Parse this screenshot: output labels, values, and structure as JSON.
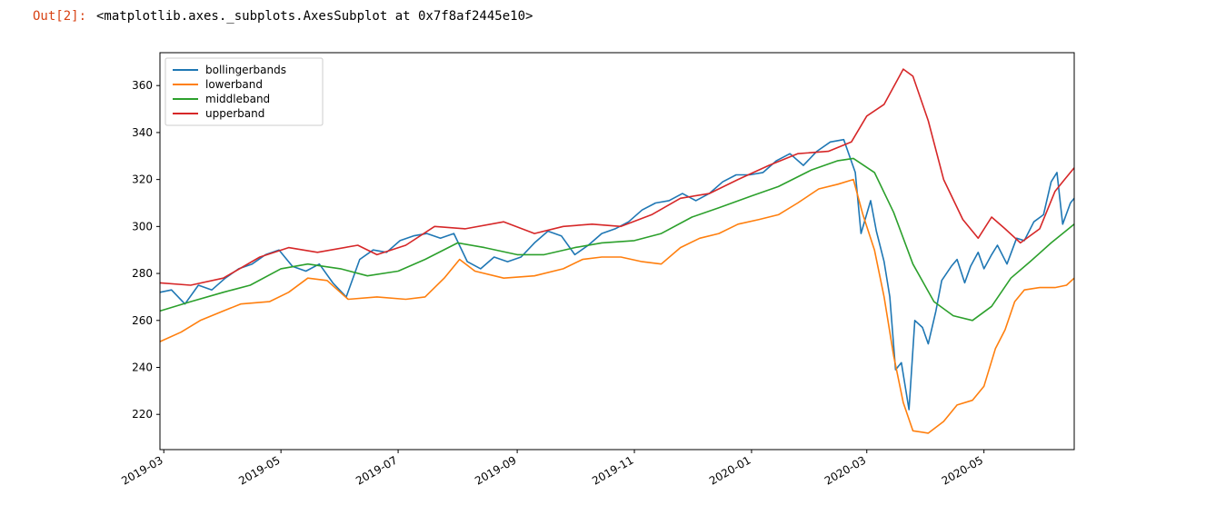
{
  "cell": {
    "prompt": "Out[2]:",
    "text": "<matplotlib.axes._subplots.AxesSubplot at 0x7f8af2445e10>"
  },
  "chart_data": {
    "type": "line",
    "title": "",
    "xlabel": "",
    "ylabel": "",
    "x_axis_type": "date",
    "xlim": [
      "2019-02-27",
      "2020-06-17"
    ],
    "ylim": [
      205,
      374
    ],
    "grid": false,
    "legend_position": "top-left",
    "x_ticks": [
      "2019-03",
      "2019-05",
      "2019-07",
      "2019-09",
      "2019-11",
      "2020-01",
      "2020-03",
      "2020-05"
    ],
    "y_ticks": [
      220,
      240,
      260,
      280,
      300,
      320,
      340,
      360
    ],
    "series": [
      {
        "name": "bollingerbands",
        "color": "#1f77b4",
        "points": [
          [
            "2019-02-27",
            272
          ],
          [
            "2019-03-05",
            273
          ],
          [
            "2019-03-12",
            267
          ],
          [
            "2019-03-19",
            275
          ],
          [
            "2019-03-26",
            273
          ],
          [
            "2019-04-02",
            278
          ],
          [
            "2019-04-09",
            282
          ],
          [
            "2019-04-16",
            284
          ],
          [
            "2019-04-23",
            288
          ],
          [
            "2019-04-30",
            290
          ],
          [
            "2019-05-07",
            283
          ],
          [
            "2019-05-14",
            281
          ],
          [
            "2019-05-21",
            284
          ],
          [
            "2019-05-28",
            276
          ],
          [
            "2019-06-04",
            270
          ],
          [
            "2019-06-11",
            286
          ],
          [
            "2019-06-18",
            290
          ],
          [
            "2019-06-25",
            289
          ],
          [
            "2019-07-02",
            294
          ],
          [
            "2019-07-09",
            296
          ],
          [
            "2019-07-16",
            297
          ],
          [
            "2019-07-23",
            295
          ],
          [
            "2019-07-30",
            297
          ],
          [
            "2019-08-06",
            285
          ],
          [
            "2019-08-13",
            282
          ],
          [
            "2019-08-20",
            287
          ],
          [
            "2019-08-27",
            285
          ],
          [
            "2019-09-03",
            287
          ],
          [
            "2019-09-10",
            293
          ],
          [
            "2019-09-17",
            298
          ],
          [
            "2019-09-24",
            296
          ],
          [
            "2019-10-01",
            288
          ],
          [
            "2019-10-08",
            292
          ],
          [
            "2019-10-15",
            297
          ],
          [
            "2019-10-22",
            299
          ],
          [
            "2019-10-29",
            302
          ],
          [
            "2019-11-05",
            307
          ],
          [
            "2019-11-12",
            310
          ],
          [
            "2019-11-19",
            311
          ],
          [
            "2019-11-26",
            314
          ],
          [
            "2019-12-03",
            311
          ],
          [
            "2019-12-10",
            314
          ],
          [
            "2019-12-17",
            319
          ],
          [
            "2019-12-24",
            322
          ],
          [
            "2019-12-31",
            322
          ],
          [
            "2020-01-07",
            323
          ],
          [
            "2020-01-14",
            328
          ],
          [
            "2020-01-21",
            331
          ],
          [
            "2020-01-28",
            326
          ],
          [
            "2020-02-04",
            332
          ],
          [
            "2020-02-11",
            336
          ],
          [
            "2020-02-18",
            337
          ],
          [
            "2020-02-24",
            323
          ],
          [
            "2020-02-27",
            297
          ],
          [
            "2020-03-03",
            311
          ],
          [
            "2020-03-06",
            298
          ],
          [
            "2020-03-10",
            285
          ],
          [
            "2020-03-13",
            270
          ],
          [
            "2020-03-16",
            239
          ],
          [
            "2020-03-19",
            242
          ],
          [
            "2020-03-23",
            222
          ],
          [
            "2020-03-26",
            260
          ],
          [
            "2020-03-30",
            257
          ],
          [
            "2020-04-02",
            250
          ],
          [
            "2020-04-06",
            264
          ],
          [
            "2020-04-09",
            277
          ],
          [
            "2020-04-14",
            283
          ],
          [
            "2020-04-17",
            286
          ],
          [
            "2020-04-21",
            276
          ],
          [
            "2020-04-24",
            283
          ],
          [
            "2020-04-28",
            289
          ],
          [
            "2020-05-01",
            282
          ],
          [
            "2020-05-05",
            288
          ],
          [
            "2020-05-08",
            292
          ],
          [
            "2020-05-13",
            284
          ],
          [
            "2020-05-18",
            295
          ],
          [
            "2020-05-22",
            294
          ],
          [
            "2020-05-27",
            302
          ],
          [
            "2020-06-01",
            305
          ],
          [
            "2020-06-05",
            319
          ],
          [
            "2020-06-08",
            323
          ],
          [
            "2020-06-11",
            301
          ],
          [
            "2020-06-15",
            310
          ],
          [
            "2020-06-17",
            312
          ]
        ]
      },
      {
        "name": "lowerband",
        "color": "#ff7f0e",
        "points": [
          [
            "2019-02-27",
            251
          ],
          [
            "2019-03-10",
            255
          ],
          [
            "2019-03-20",
            260
          ],
          [
            "2019-04-01",
            264
          ],
          [
            "2019-04-10",
            267
          ],
          [
            "2019-04-25",
            268
          ],
          [
            "2019-05-05",
            272
          ],
          [
            "2019-05-15",
            278
          ],
          [
            "2019-05-25",
            277
          ],
          [
            "2019-06-05",
            269
          ],
          [
            "2019-06-20",
            270
          ],
          [
            "2019-07-05",
            269
          ],
          [
            "2019-07-15",
            270
          ],
          [
            "2019-07-25",
            278
          ],
          [
            "2019-08-02",
            286
          ],
          [
            "2019-08-10",
            281
          ],
          [
            "2019-08-25",
            278
          ],
          [
            "2019-09-10",
            279
          ],
          [
            "2019-09-25",
            282
          ],
          [
            "2019-10-05",
            286
          ],
          [
            "2019-10-15",
            287
          ],
          [
            "2019-10-25",
            287
          ],
          [
            "2019-11-05",
            285
          ],
          [
            "2019-11-15",
            284
          ],
          [
            "2019-11-25",
            291
          ],
          [
            "2019-12-05",
            295
          ],
          [
            "2019-12-15",
            297
          ],
          [
            "2019-12-25",
            301
          ],
          [
            "2020-01-05",
            303
          ],
          [
            "2020-01-15",
            305
          ],
          [
            "2020-01-25",
            310
          ],
          [
            "2020-02-05",
            316
          ],
          [
            "2020-02-15",
            318
          ],
          [
            "2020-02-23",
            320
          ],
          [
            "2020-02-28",
            305
          ],
          [
            "2020-03-05",
            290
          ],
          [
            "2020-03-10",
            270
          ],
          [
            "2020-03-15",
            245
          ],
          [
            "2020-03-20",
            225
          ],
          [
            "2020-03-25",
            213
          ],
          [
            "2020-04-02",
            212
          ],
          [
            "2020-04-10",
            217
          ],
          [
            "2020-04-17",
            224
          ],
          [
            "2020-04-25",
            226
          ],
          [
            "2020-05-01",
            232
          ],
          [
            "2020-05-07",
            248
          ],
          [
            "2020-05-12",
            256
          ],
          [
            "2020-05-17",
            268
          ],
          [
            "2020-05-22",
            273
          ],
          [
            "2020-05-30",
            274
          ],
          [
            "2020-06-07",
            274
          ],
          [
            "2020-06-13",
            275
          ],
          [
            "2020-06-17",
            278
          ]
        ]
      },
      {
        "name": "middleband",
        "color": "#2ca02c",
        "points": [
          [
            "2019-02-27",
            264
          ],
          [
            "2019-03-15",
            268
          ],
          [
            "2019-04-01",
            272
          ],
          [
            "2019-04-15",
            275
          ],
          [
            "2019-05-01",
            282
          ],
          [
            "2019-05-15",
            284
          ],
          [
            "2019-06-01",
            282
          ],
          [
            "2019-06-15",
            279
          ],
          [
            "2019-07-01",
            281
          ],
          [
            "2019-07-15",
            286
          ],
          [
            "2019-08-01",
            293
          ],
          [
            "2019-08-15",
            291
          ],
          [
            "2019-09-01",
            288
          ],
          [
            "2019-09-15",
            288
          ],
          [
            "2019-10-01",
            291
          ],
          [
            "2019-10-15",
            293
          ],
          [
            "2019-11-01",
            294
          ],
          [
            "2019-11-15",
            297
          ],
          [
            "2019-12-01",
            304
          ],
          [
            "2019-12-15",
            308
          ],
          [
            "2020-01-01",
            313
          ],
          [
            "2020-01-15",
            317
          ],
          [
            "2020-02-01",
            324
          ],
          [
            "2020-02-15",
            328
          ],
          [
            "2020-02-23",
            329
          ],
          [
            "2020-03-05",
            323
          ],
          [
            "2020-03-15",
            306
          ],
          [
            "2020-03-25",
            284
          ],
          [
            "2020-04-05",
            268
          ],
          [
            "2020-04-15",
            262
          ],
          [
            "2020-04-25",
            260
          ],
          [
            "2020-05-05",
            266
          ],
          [
            "2020-05-15",
            278
          ],
          [
            "2020-05-25",
            285
          ],
          [
            "2020-06-05",
            293
          ],
          [
            "2020-06-17",
            301
          ]
        ]
      },
      {
        "name": "upperband",
        "color": "#d62728",
        "points": [
          [
            "2019-02-27",
            276
          ],
          [
            "2019-03-15",
            275
          ],
          [
            "2019-04-01",
            278
          ],
          [
            "2019-04-20",
            287
          ],
          [
            "2019-05-05",
            291
          ],
          [
            "2019-05-20",
            289
          ],
          [
            "2019-06-10",
            292
          ],
          [
            "2019-06-20",
            288
          ],
          [
            "2019-07-05",
            292
          ],
          [
            "2019-07-20",
            300
          ],
          [
            "2019-08-05",
            299
          ],
          [
            "2019-08-25",
            302
          ],
          [
            "2019-09-10",
            297
          ],
          [
            "2019-09-25",
            300
          ],
          [
            "2019-10-10",
            301
          ],
          [
            "2019-10-25",
            300
          ],
          [
            "2019-11-10",
            305
          ],
          [
            "2019-11-25",
            312
          ],
          [
            "2019-12-10",
            314
          ],
          [
            "2019-12-25",
            320
          ],
          [
            "2020-01-10",
            326
          ],
          [
            "2020-01-25",
            331
          ],
          [
            "2020-02-10",
            332
          ],
          [
            "2020-02-22",
            336
          ],
          [
            "2020-03-01",
            347
          ],
          [
            "2020-03-10",
            352
          ],
          [
            "2020-03-20",
            367
          ],
          [
            "2020-03-25",
            364
          ],
          [
            "2020-04-02",
            345
          ],
          [
            "2020-04-10",
            320
          ],
          [
            "2020-04-20",
            303
          ],
          [
            "2020-04-28",
            295
          ],
          [
            "2020-05-05",
            304
          ],
          [
            "2020-05-12",
            299
          ],
          [
            "2020-05-20",
            293
          ],
          [
            "2020-05-30",
            299
          ],
          [
            "2020-06-07",
            315
          ],
          [
            "2020-06-12",
            320
          ],
          [
            "2020-06-17",
            325
          ]
        ]
      }
    ]
  }
}
